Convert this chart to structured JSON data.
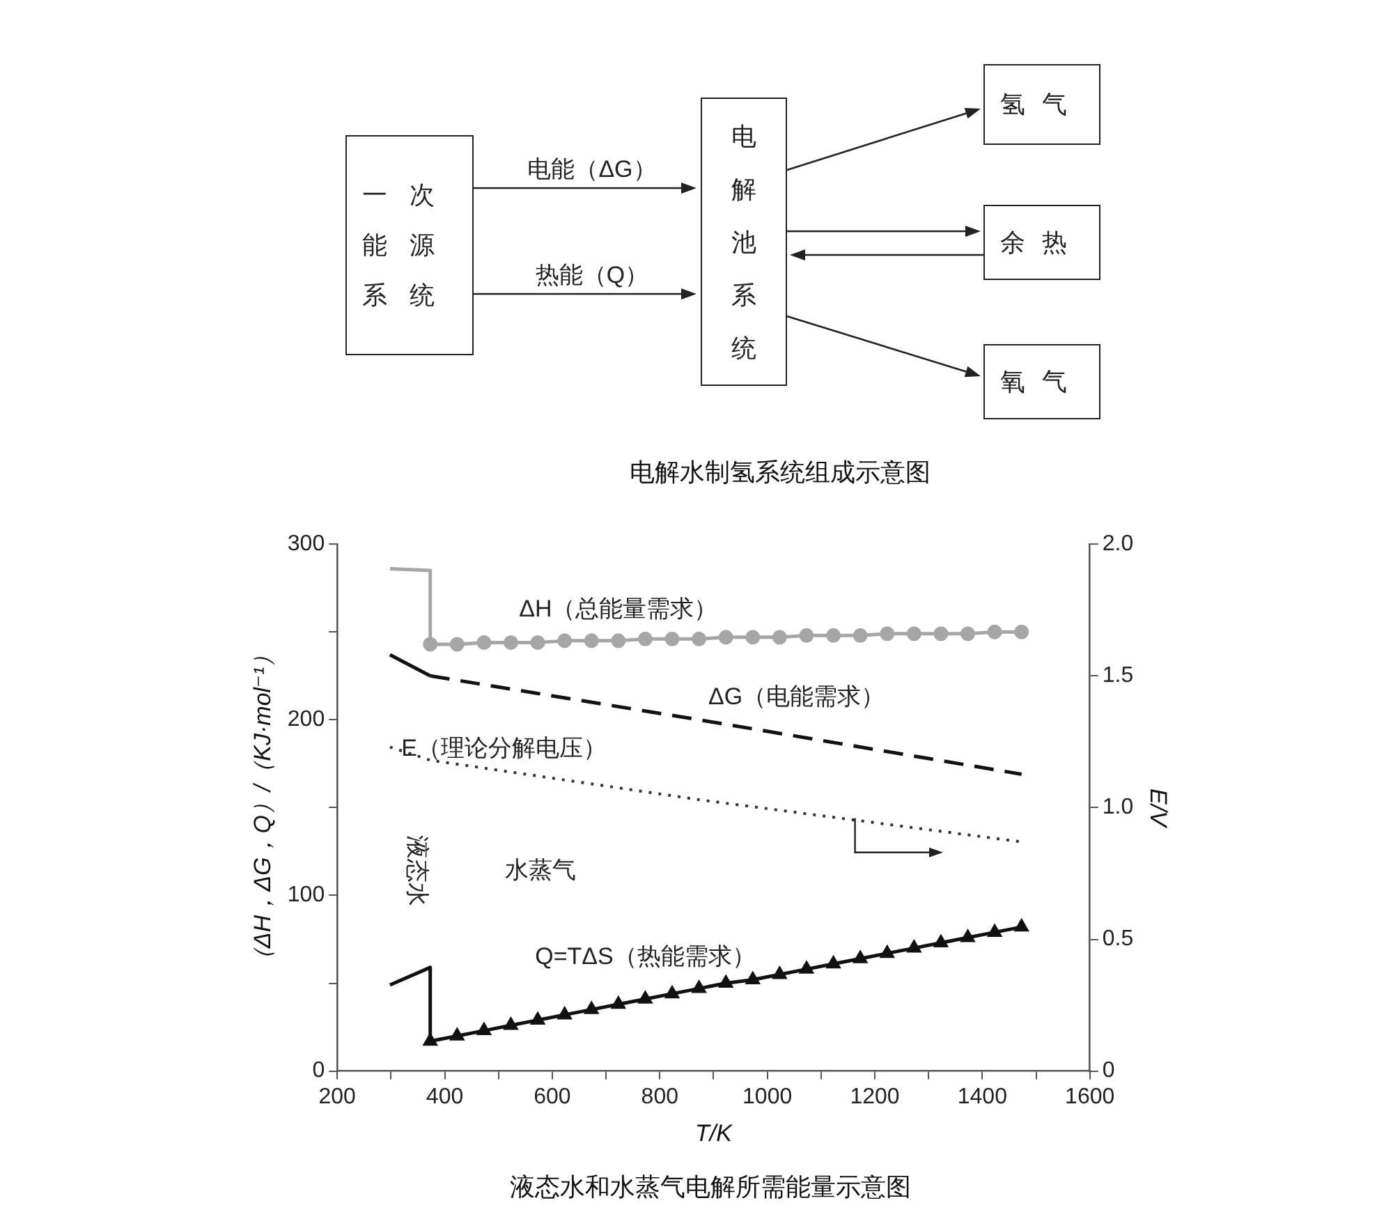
{
  "chart_data": [
    {
      "type": "other",
      "title": "电解水制氢系统组成示意图",
      "annotations": [
        "一次能源系统",
        "电能（ΔG）",
        "热能（Q）",
        "电解池系统",
        "氢气",
        "余热",
        "氧气"
      ]
    },
    {
      "type": "line",
      "title": "液态水和水蒸气电解所需能量示意图",
      "xlabel": "T/K",
      "ylabel": "（ΔH，ΔG，Q）/（KJ·mol⁻¹）",
      "y2label": "E/V",
      "xlim": [
        200,
        1600
      ],
      "xticks": [
        200,
        {
          "value": 300,
          "label": null
        },
        400,
        {
          "value": 500,
          "label": null
        },
        600,
        {
          "value": 700,
          "label": null
        },
        800,
        {
          "value": 900,
          "label": null
        },
        1000,
        {
          "value": 1100,
          "label": null
        },
        1200,
        {
          "value": 1300,
          "label": null
        },
        1400,
        {
          "value": 1500,
          "label": null
        },
        1600
      ],
      "ylim": [
        0,
        300
      ],
      "yticks": [
        0,
        {
          "value": 50,
          "label": null
        },
        100,
        {
          "value": 150,
          "label": null
        },
        200,
        {
          "value": 250,
          "label": null
        },
        300
      ],
      "y2lim": [
        0,
        2
      ],
      "y2ticks": [
        0,
        0.5,
        {
          "value": 1,
          "label": "1.0"
        },
        1.5,
        {
          "value": 2,
          "label": "2.0"
        }
      ],
      "grid": false,
      "legend": false,
      "annotations": [
        "液态水",
        "水蒸气"
      ],
      "series": [
        {
          "type": "line",
          "color": "#a6a6a6",
          "x": [
            298,
            373,
            373
          ],
          "values": [
            286,
            285,
            243
          ],
          "marker": "none",
          "line_style": "solid"
        },
        {
          "type": "line",
          "name": "ΔH（总能量需求）",
          "color": "#a6a6a6",
          "x": [
            373,
            423,
            473,
            523,
            573,
            623,
            673,
            723,
            773,
            823,
            873,
            923,
            973,
            1023,
            1073,
            1123,
            1173,
            1223,
            1273,
            1323,
            1373,
            1423,
            1473
          ],
          "values": [
            243,
            243,
            244,
            244,
            244,
            245,
            245,
            245,
            246,
            246,
            246,
            247,
            247,
            247,
            248,
            248,
            248,
            249,
            249,
            249,
            249,
            250,
            250
          ],
          "marker": "circle",
          "line_style": "solid"
        },
        {
          "type": "line",
          "color": "#111111",
          "x": [
            298,
            373
          ],
          "values": [
            237,
            225
          ],
          "marker": "none",
          "line_style": "solid"
        },
        {
          "type": "line",
          "name": "ΔG（电能需求）",
          "color": "#111111",
          "x": [
            373,
            873,
            1473
          ],
          "values": [
            225,
            200,
            169
          ],
          "marker": "none",
          "line_style": "dashed"
        },
        {
          "type": "line",
          "name": "E（理论分解电压）",
          "color": "#333333",
          "axis": "y2",
          "x": [
            298,
            373,
            873,
            1473
          ],
          "values": [
            1.23,
            1.18,
            1.03,
            0.87
          ],
          "marker": "none",
          "line_style": "dotted"
        },
        {
          "type": "line",
          "color": "#111111",
          "x": [
            298,
            373,
            373
          ],
          "values": [
            49,
            59,
            17
          ],
          "marker": "none",
          "line_style": "solid"
        },
        {
          "type": "line",
          "name": "Q=TΔS（热能需求）",
          "color": "#111111",
          "x": [
            373,
            423,
            473,
            523,
            573,
            623,
            673,
            723,
            773,
            823,
            873,
            923,
            973,
            1023,
            1073,
            1123,
            1173,
            1223,
            1273,
            1323,
            1373,
            1423,
            1473
          ],
          "values": [
            17,
            20,
            23,
            26,
            29,
            32,
            35,
            38,
            41,
            44,
            47,
            50,
            52,
            55,
            58,
            61,
            64,
            67,
            70,
            73,
            76,
            79,
            82
          ],
          "marker": "triangle",
          "line_style": "solid"
        }
      ]
    }
  ]
}
